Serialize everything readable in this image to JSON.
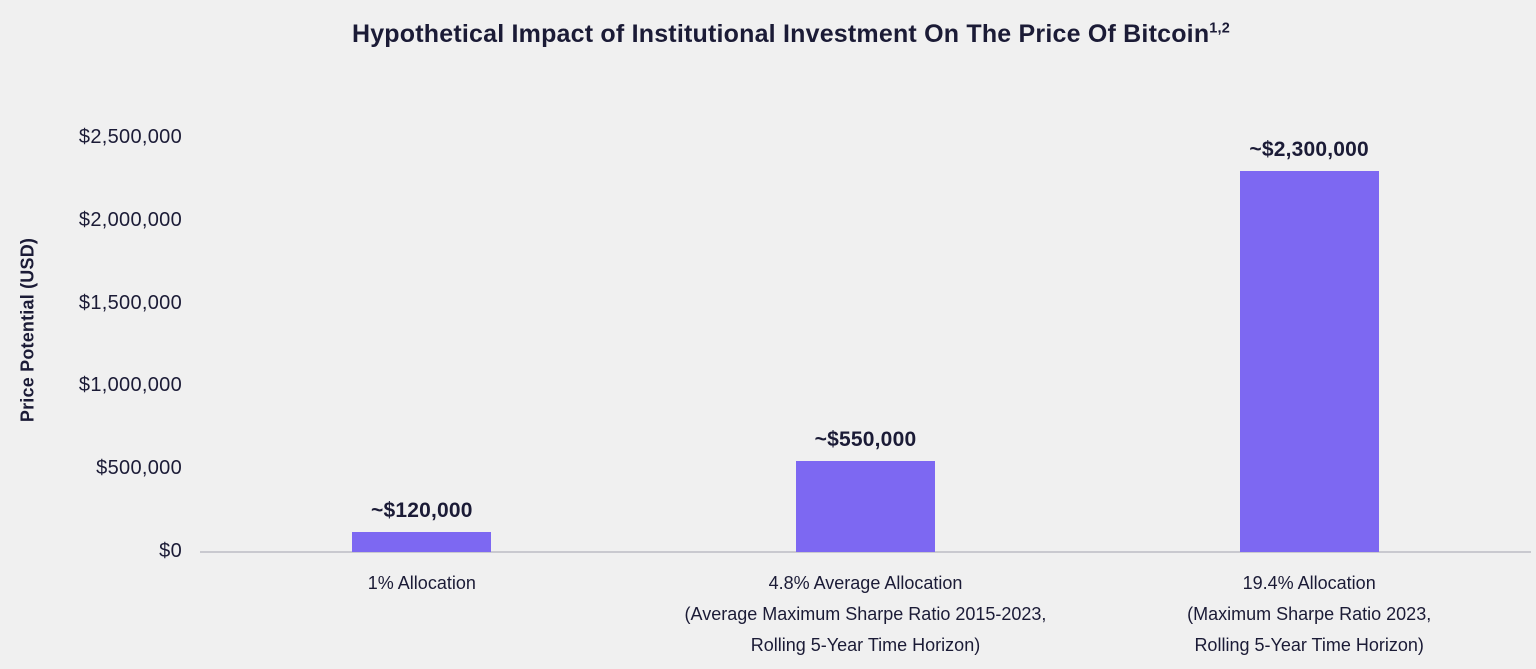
{
  "header": {
    "title": "Hypothetical Impact of Institutional Investment On The Price Of Bitcoin",
    "superscript": "1,2"
  },
  "chart_data": {
    "type": "bar",
    "title": "Hypothetical Impact of Institutional Investment On The Price Of Bitcoin¹,²",
    "xlabel": "",
    "ylabel": "Price Potential (USD)",
    "ylim": [
      0,
      2500000
    ],
    "ytick_interval": 500000,
    "ytick_labels": [
      "$0",
      "$500,000",
      "$1,000,000",
      "$1,500,000",
      "$2,000,000",
      "$2,500,000"
    ],
    "grid": false,
    "legend": false,
    "categories": [
      [
        "1% Allocation"
      ],
      [
        "4.8% Average Allocation",
        "(Average Maximum Sharpe Ratio 2015-2023,",
        "Rolling 5-Year Time Horizon)"
      ],
      [
        "19.4% Allocation",
        "(Maximum Sharpe Ratio 2023,",
        "Rolling 5-Year Time Horizon)"
      ]
    ],
    "values": [
      120000,
      550000,
      2300000
    ],
    "value_labels": [
      "~$120,000",
      "~$550,000",
      "~$2,300,000"
    ]
  },
  "colors": {
    "background": "#f0f0f0",
    "text": "#1b1b36",
    "bar": "#7d68f2",
    "baseline": "#c9c9cf"
  }
}
